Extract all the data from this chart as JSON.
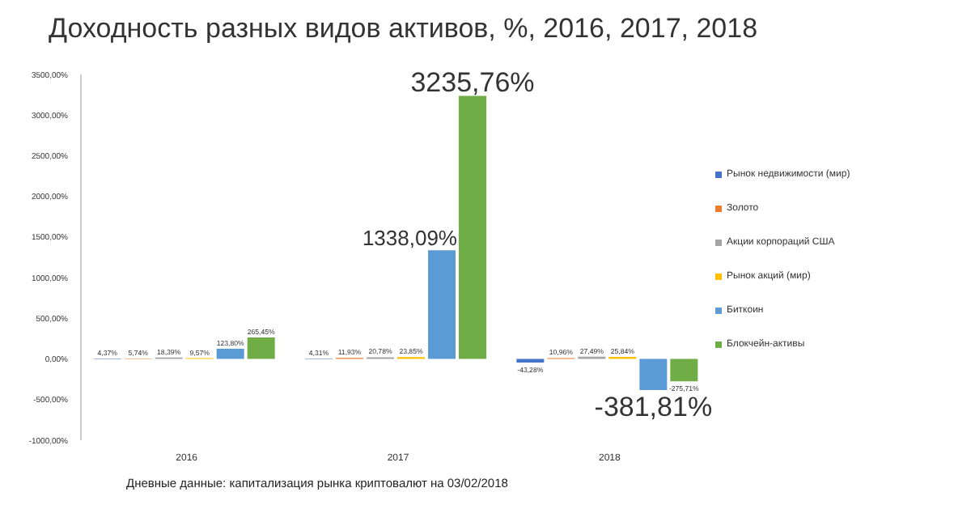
{
  "chart_data": {
    "type": "bar",
    "title": "Доходность разных видов активов, %, 2016, 2017, 2018",
    "categories": [
      "2016",
      "2017",
      "2018"
    ],
    "series": [
      {
        "name": "Рынок недвижимости (мир)",
        "color": "#4472c4",
        "values": [
          4.37,
          4.31,
          -43.28
        ],
        "value_labels": [
          "4,37%",
          "4,31%",
          "-43,28%"
        ]
      },
      {
        "name": "Золото",
        "color": "#ed7d31",
        "values": [
          5.74,
          11.93,
          10.96
        ],
        "value_labels": [
          "5,74%",
          "11,93%",
          "10,96%"
        ]
      },
      {
        "name": "Акции корпораций США",
        "color": "#a5a5a5",
        "values": [
          18.39,
          20.78,
          27.49
        ],
        "value_labels": [
          "18,39%",
          "20,78%",
          "27,49%"
        ]
      },
      {
        "name": "Рынок акций (мир)",
        "color": "#ffc000",
        "values": [
          9.57,
          23.85,
          25.84
        ],
        "value_labels": [
          "9,57%",
          "23,85%",
          "25,84%"
        ]
      },
      {
        "name": "Биткоин",
        "color": "#5b9bd5",
        "values": [
          123.8,
          1338.09,
          -381.81
        ],
        "value_labels": [
          "123,80%",
          "1338,09%",
          "-381,81%"
        ]
      },
      {
        "name": "Блокчейн-активы",
        "color": "#70ad47",
        "values": [
          265.45,
          3235.76,
          -275.71
        ],
        "value_labels": [
          "265,45%",
          "3235,76%",
          "-275,71%"
        ]
      }
    ],
    "ylim": [
      -1000,
      3500
    ],
    "yticks": [
      {
        "value": -1000,
        "label": "-1000,00%"
      },
      {
        "value": -500,
        "label": "-500,00%"
      },
      {
        "value": 0,
        "label": "0,00%"
      },
      {
        "value": 500,
        "label": "500,00%"
      },
      {
        "value": 1000,
        "label": "1000,00%"
      },
      {
        "value": 1500,
        "label": "1500,00%"
      },
      {
        "value": 2000,
        "label": "2000,00%"
      },
      {
        "value": 2500,
        "label": "2500,00%"
      },
      {
        "value": 3000,
        "label": "3000,00%"
      },
      {
        "value": 3500,
        "label": "3500,00%"
      }
    ],
    "grid": false,
    "legend": "right",
    "annotations": [
      "Дневные данные: капитализация рынка криптовалют на 03/02/2018"
    ]
  }
}
